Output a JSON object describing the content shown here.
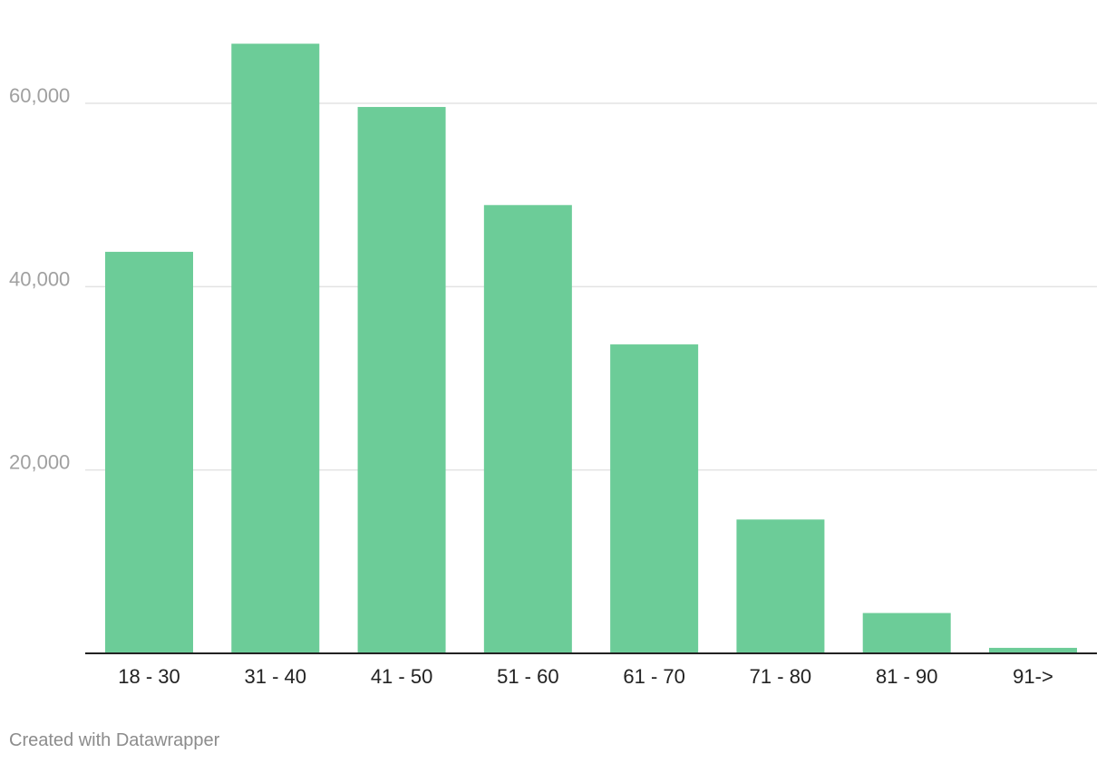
{
  "chart_data": {
    "type": "bar",
    "title": "",
    "xlabel": "",
    "ylabel": "",
    "categories": [
      "18 - 30",
      "31 - 40",
      "41 - 50",
      "51 - 60",
      "61 - 70",
      "71 - 80",
      "81 - 90",
      "91->"
    ],
    "values": [
      43800,
      66500,
      59600,
      48900,
      33700,
      14600,
      4400,
      600
    ],
    "ylim": [
      0,
      70000
    ],
    "yticks": [
      20000,
      40000,
      60000
    ],
    "ytick_labels": [
      "20,000",
      "40,000",
      "60,000"
    ],
    "grid": true,
    "legend": "none",
    "bar_color": "#6ccc98",
    "grid_color": "#e3e3e3",
    "axis_color": "#222222",
    "ytick_label_color": "#a0a0a0",
    "xtick_label_color": "#222222"
  },
  "footer": {
    "credit": "Created with Datawrapper"
  }
}
